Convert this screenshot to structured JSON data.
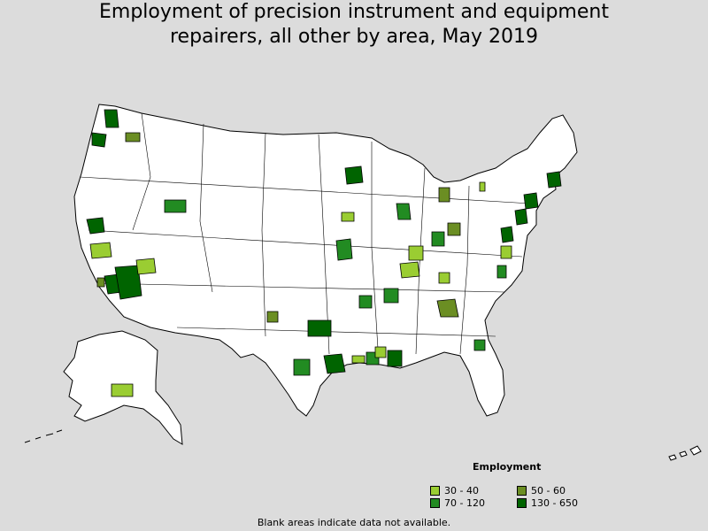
{
  "title": {
    "line1": "Employment of precision instrument and equipment",
    "line2": "repairers, all other by area, May 2019"
  },
  "legend": {
    "title": "Employment",
    "items": [
      {
        "label": "30 - 40",
        "color": "#9acd32"
      },
      {
        "label": "50 - 60",
        "color": "#6b8e23"
      },
      {
        "label": "70 - 120",
        "color": "#228b22"
      },
      {
        "label": "130 - 650",
        "color": "#006400"
      }
    ]
  },
  "footnote": "Blank areas indicate data not available.",
  "colors": {
    "background": "#dcdcdc",
    "no_data": "#ffffff",
    "border": "#000000"
  },
  "shaded_areas": [
    {
      "region": "Seattle area, WA",
      "class": "130 - 650"
    },
    {
      "region": "Portland area, OR",
      "class": "130 - 650"
    },
    {
      "region": "Spokane area, WA",
      "class": "50 - 60"
    },
    {
      "region": "San Francisco Bay area, CA",
      "class": "130 - 650"
    },
    {
      "region": "Fresno area, CA",
      "class": "30 - 40"
    },
    {
      "region": "Los Angeles area, CA",
      "class": "130 - 650"
    },
    {
      "region": "San Diego area, CA",
      "class": "130 - 650"
    },
    {
      "region": "Phoenix area, AZ",
      "class": "130 - 650"
    },
    {
      "region": "Las Vegas area, NV",
      "class": "30 - 40"
    },
    {
      "region": "Salt Lake City area, UT",
      "class": "70 - 120"
    },
    {
      "region": "Albuquerque area, NM",
      "class": "50 - 60"
    },
    {
      "region": "Dallas-Fort Worth area, TX",
      "class": "130 - 650"
    },
    {
      "region": "Austin area, TX",
      "class": "70 - 120"
    },
    {
      "region": "Houston area, TX",
      "class": "130 - 650"
    },
    {
      "region": "Minneapolis area, MN",
      "class": "130 - 650"
    },
    {
      "region": "Omaha area, NE",
      "class": "30 - 40"
    },
    {
      "region": "Kansas City area, MO",
      "class": "70 - 120"
    },
    {
      "region": "Chicago area, IL",
      "class": "70 - 120"
    },
    {
      "region": "Detroit area, MI",
      "class": "50 - 60"
    },
    {
      "region": "Indianapolis area, IN",
      "class": "70 - 120"
    },
    {
      "region": "Columbus area, OH",
      "class": "50 - 60"
    },
    {
      "region": "Louisville area, KY",
      "class": "30 - 40"
    },
    {
      "region": "Nashville area, TN",
      "class": "30 - 40"
    },
    {
      "region": "Memphis area, TN",
      "class": "70 - 120"
    },
    {
      "region": "Atlanta area, GA",
      "class": "50 - 60"
    },
    {
      "region": "Baton Rouge area, LA",
      "class": "70 - 120"
    },
    {
      "region": "New Orleans area, LA",
      "class": "130 - 650"
    },
    {
      "region": "Jacksonville area, FL",
      "class": "70 - 120"
    },
    {
      "region": "Washington DC area",
      "class": "130 - 650"
    },
    {
      "region": "Philadelphia area, PA",
      "class": "130 - 650"
    },
    {
      "region": "New York area, NY-NJ",
      "class": "130 - 650"
    },
    {
      "region": "Boston area, MA",
      "class": "130 - 650"
    },
    {
      "region": "Anchorage area, AK",
      "class": "30 - 40"
    }
  ]
}
